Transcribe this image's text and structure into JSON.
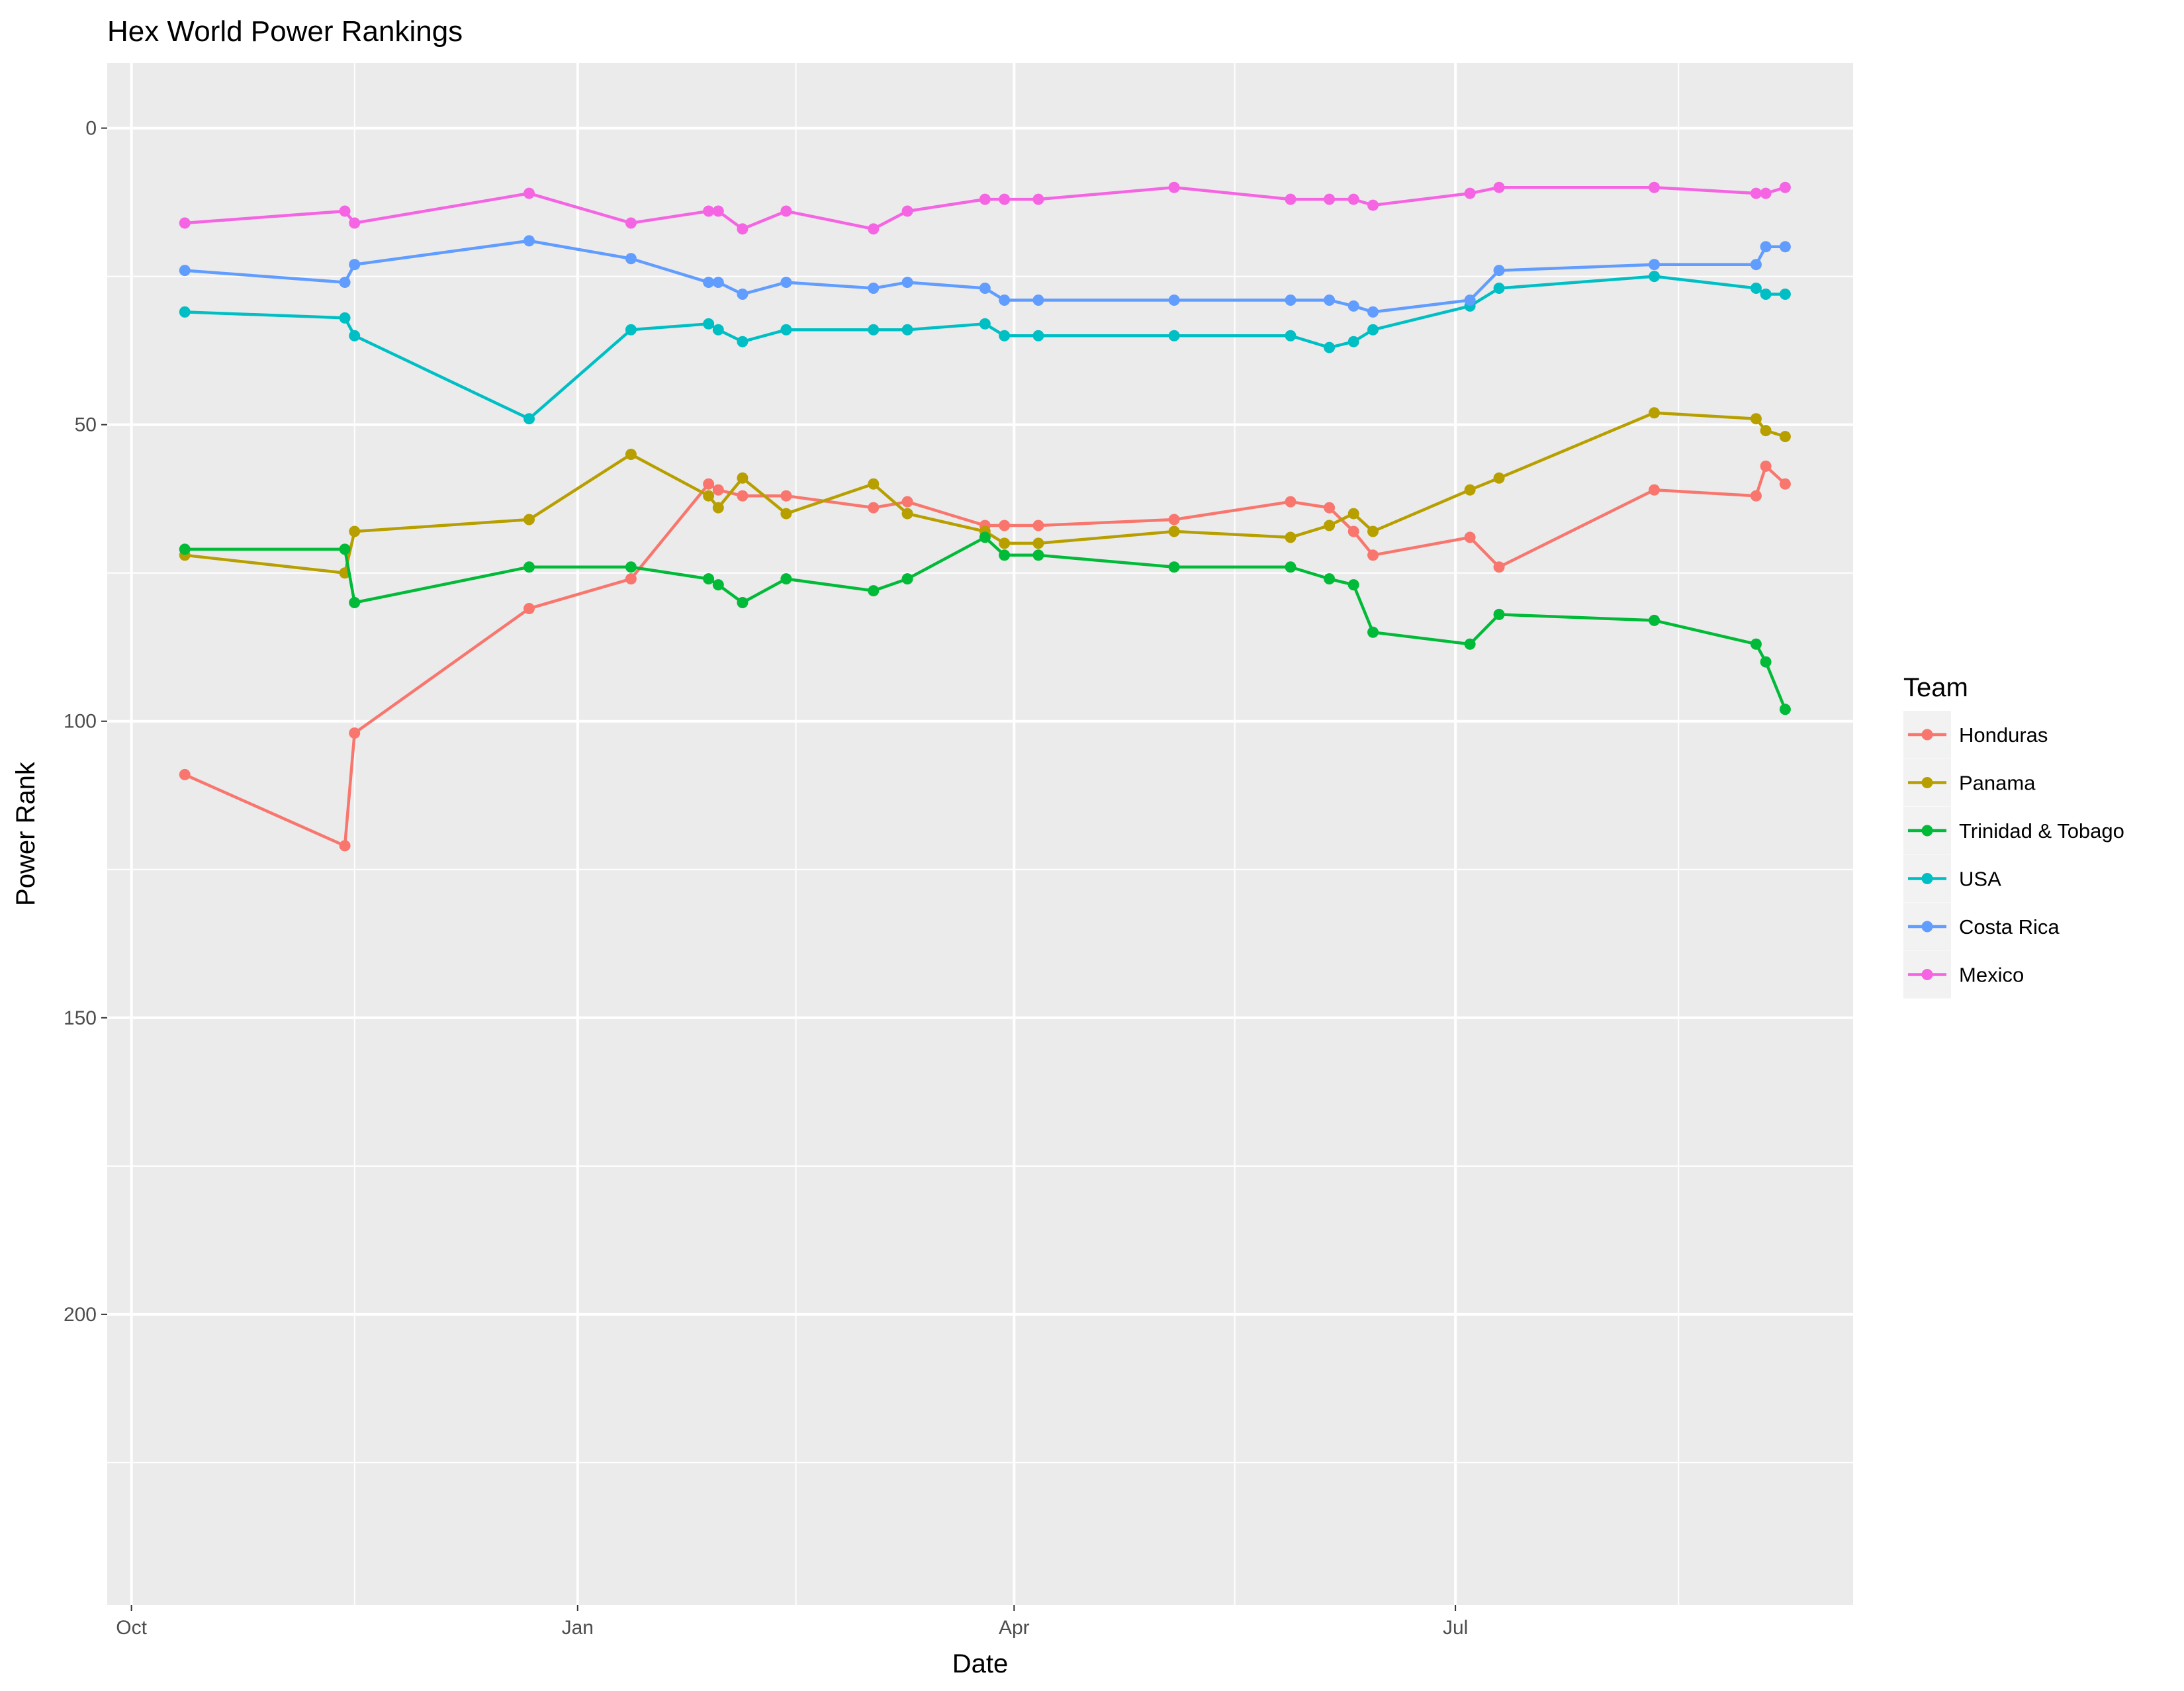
{
  "chart_data": {
    "type": "line",
    "title": "Hex World Power Rankings",
    "xlabel": "Date",
    "ylabel": "Power Rank",
    "y_reversed": true,
    "ylim": [
      -11,
      249
    ],
    "y_ticks": [
      0,
      50,
      100,
      150,
      200
    ],
    "x_ticks": [
      {
        "label": "Oct",
        "date": "2016-10-01"
      },
      {
        "label": "Jan",
        "date": "2017-01-01"
      },
      {
        "label": "Apr",
        "date": "2017-04-01"
      },
      {
        "label": "Jul",
        "date": "2017-07-01"
      }
    ],
    "xlim": [
      "2016-09-26",
      "2017-09-21"
    ],
    "grid": true,
    "legend": {
      "title": "Team",
      "placement": "right"
    },
    "x": [
      "2016-10-12",
      "2016-11-14",
      "2016-11-16",
      "2016-12-22",
      "2017-01-12",
      "2017-01-28",
      "2017-01-30",
      "2017-02-04",
      "2017-02-13",
      "2017-03-03",
      "2017-03-10",
      "2017-03-26",
      "2017-03-30",
      "2017-04-06",
      "2017-05-04",
      "2017-05-28",
      "2017-06-05",
      "2017-06-10",
      "2017-06-14",
      "2017-07-04",
      "2017-07-10",
      "2017-08-11",
      "2017-09-01",
      "2017-09-03",
      "2017-09-07"
    ],
    "series": [
      {
        "name": "Honduras",
        "color": "#F8766D",
        "values": [
          109,
          121,
          102,
          81,
          76,
          60,
          61,
          62,
          62,
          64,
          63,
          67,
          67,
          67,
          66,
          63,
          64,
          68,
          72,
          69,
          74,
          61,
          62,
          57,
          60
        ]
      },
      {
        "name": "Panama",
        "color": "#B79F00",
        "values": [
          72,
          75,
          68,
          66,
          55,
          62,
          64,
          59,
          65,
          60,
          65,
          68,
          70,
          70,
          68,
          69,
          67,
          65,
          68,
          61,
          59,
          48,
          49,
          51,
          52
        ]
      },
      {
        "name": "Trinidad & Tobago",
        "color": "#00BA38",
        "values": [
          71,
          71,
          80,
          74,
          74,
          76,
          77,
          80,
          76,
          78,
          76,
          69,
          72,
          72,
          74,
          74,
          76,
          77,
          85,
          87,
          82,
          83,
          87,
          90,
          98
        ]
      },
      {
        "name": "USA",
        "color": "#00BFC4",
        "values": [
          31,
          32,
          35,
          49,
          34,
          33,
          34,
          36,
          34,
          34,
          34,
          33,
          35,
          35,
          35,
          35,
          37,
          36,
          34,
          30,
          27,
          25,
          27,
          28,
          28
        ]
      },
      {
        "name": "Costa Rica",
        "color": "#619CFF",
        "values": [
          24,
          26,
          23,
          19,
          22,
          26,
          26,
          28,
          26,
          27,
          26,
          27,
          29,
          29,
          29,
          29,
          29,
          30,
          31,
          29,
          24,
          23,
          23,
          20,
          20
        ]
      },
      {
        "name": "Mexico",
        "color": "#F564E3",
        "values": [
          16,
          14,
          16,
          11,
          16,
          14,
          14,
          17,
          14,
          17,
          14,
          12,
          12,
          12,
          10,
          12,
          12,
          12,
          13,
          11,
          10,
          10,
          11,
          11,
          10
        ]
      }
    ]
  }
}
